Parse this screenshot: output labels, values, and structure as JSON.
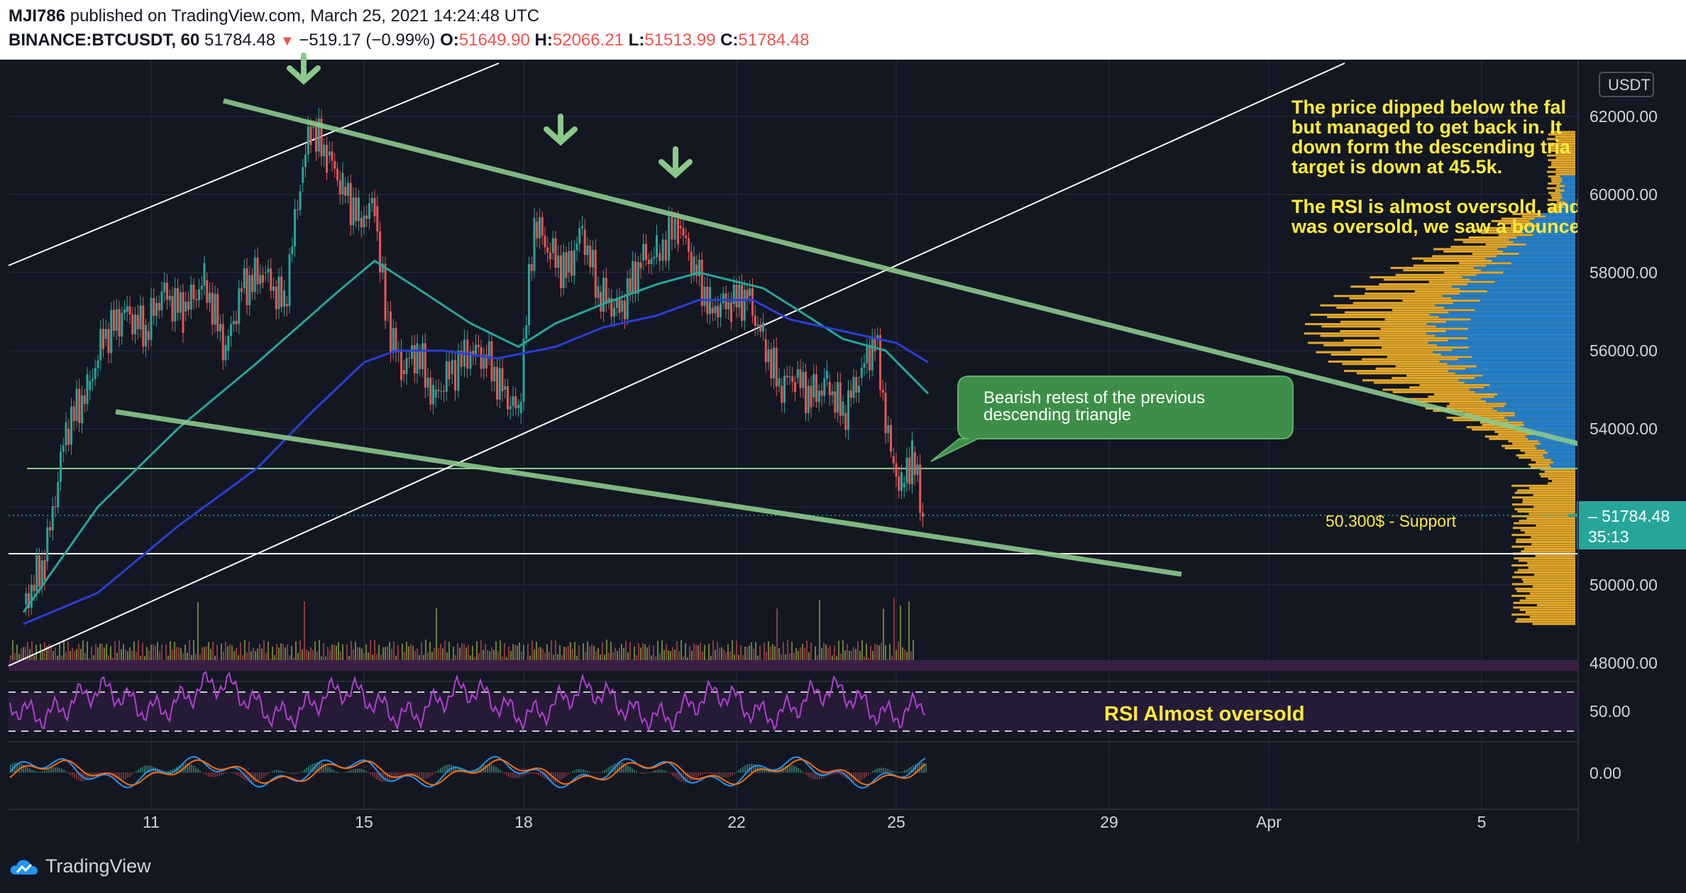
{
  "header": {
    "author": "MJI786",
    "published": "published on TradingView.com, March 25, 2021 14:24:48 UTC",
    "symbol": "BINANCE:BTCUSDT, 60",
    "last": "51784.48",
    "change": "−519.17 (−0.99%)",
    "o_label": "O:",
    "o_value": "51649.90",
    "h_label": "H:",
    "h_value": "52066.21",
    "l_label": "L:",
    "l_value": "51513.99",
    "c_label": "C:",
    "c_value": "51784.48"
  },
  "chart_data": {
    "type": "candlestick",
    "symbol": "BINANCE:BTCUSDT",
    "interval": "60",
    "currency": "USDT",
    "price_axis": {
      "ticks": [
        48000,
        50000,
        52000,
        54000,
        56000,
        58000,
        60000,
        62000
      ],
      "labels": [
        "48000.00",
        "50000.00",
        "52000.00",
        "54000.00",
        "56000.00",
        "58000.00",
        "60000.00",
        "62000.00"
      ]
    },
    "time_axis": {
      "labels": [
        "11",
        "15",
        "18",
        "22",
        "25",
        "29",
        "Apr",
        "5"
      ]
    },
    "price_path": [
      [
        8.6,
        49500
      ],
      [
        9.0,
        50600
      ],
      [
        9.4,
        54000
      ],
      [
        9.8,
        55000
      ],
      [
        10.1,
        56300
      ],
      [
        10.5,
        57000
      ],
      [
        10.9,
        56500
      ],
      [
        11.2,
        57500
      ],
      [
        11.6,
        57000
      ],
      [
        12.0,
        57800
      ],
      [
        12.4,
        56000
      ],
      [
        12.7,
        57600
      ],
      [
        13.1,
        58000
      ],
      [
        13.5,
        57200
      ],
      [
        13.8,
        60300
      ],
      [
        14.0,
        61700
      ],
      [
        14.3,
        61000
      ],
      [
        14.6,
        60200
      ],
      [
        14.9,
        59400
      ],
      [
        15.2,
        59700
      ],
      [
        15.4,
        57000
      ],
      [
        15.7,
        55500
      ],
      [
        16.0,
        56000
      ],
      [
        16.3,
        54800
      ],
      [
        16.6,
        55400
      ],
      [
        17.0,
        56000
      ],
      [
        17.3,
        55800
      ],
      [
        17.6,
        55000
      ],
      [
        17.9,
        54400
      ],
      [
        18.2,
        59300
      ],
      [
        18.5,
        58500
      ],
      [
        18.8,
        58000
      ],
      [
        19.1,
        59100
      ],
      [
        19.4,
        57500
      ],
      [
        19.8,
        57000
      ],
      [
        20.2,
        58300
      ],
      [
        20.5,
        58500
      ],
      [
        20.9,
        59200
      ],
      [
        21.2,
        58200
      ],
      [
        21.5,
        57100
      ],
      [
        21.9,
        57200
      ],
      [
        22.2,
        57400
      ],
      [
        22.5,
        56300
      ],
      [
        22.8,
        55100
      ],
      [
        23.1,
        55300
      ],
      [
        23.4,
        54800
      ],
      [
        23.7,
        55200
      ],
      [
        24.0,
        54400
      ],
      [
        24.3,
        55300
      ],
      [
        24.6,
        56300
      ],
      [
        24.9,
        53300
      ],
      [
        25.1,
        52500
      ],
      [
        25.3,
        53400
      ],
      [
        25.5,
        51784
      ]
    ],
    "ema_teal_path": [
      [
        8.6,
        49300
      ],
      [
        10.0,
        52000
      ],
      [
        11.5,
        54000
      ],
      [
        13.0,
        55700
      ],
      [
        14.5,
        57500
      ],
      [
        15.2,
        58300
      ],
      [
        16.0,
        57600
      ],
      [
        17.0,
        56700
      ],
      [
        17.9,
        56100
      ],
      [
        18.6,
        56700
      ],
      [
        19.5,
        57200
      ],
      [
        20.5,
        57700
      ],
      [
        21.3,
        58000
      ],
      [
        22.5,
        57600
      ],
      [
        23.2,
        57000
      ],
      [
        24.0,
        56300
      ],
      [
        24.8,
        56000
      ],
      [
        25.6,
        54900
      ]
    ],
    "ema_blue_path": [
      [
        8.6,
        49000
      ],
      [
        10.0,
        49800
      ],
      [
        11.5,
        51500
      ],
      [
        13.0,
        53000
      ],
      [
        14.0,
        54400
      ],
      [
        15.0,
        55700
      ],
      [
        15.6,
        56000
      ],
      [
        16.5,
        56000
      ],
      [
        17.5,
        55800
      ],
      [
        18.6,
        56100
      ],
      [
        19.5,
        56600
      ],
      [
        20.5,
        56900
      ],
      [
        21.3,
        57300
      ],
      [
        22.3,
        57300
      ],
      [
        23.0,
        56800
      ],
      [
        24.0,
        56500
      ],
      [
        25.0,
        56200
      ],
      [
        25.6,
        55700
      ]
    ],
    "rsi": {
      "levels": [
        70,
        30
      ],
      "axis_label": "50.00",
      "note": "RSI Almost oversold"
    },
    "macd": {
      "axis_label": "0.00"
    },
    "annotations": {
      "callout": "Bearish retest of the previous descending triangle",
      "support_label": "50.300$ - Support",
      "commentary": [
        "The price dipped below the fal",
        "but managed to get back in. It",
        "down form the descending tria",
        "target is down at 45.5k.",
        "",
        "The RSI is almost oversold, and",
        "was oversold, we saw a bounce"
      ]
    },
    "last_price_tag": {
      "price": "51784.48",
      "countdown": "35:13"
    },
    "colors": {
      "background": "#131722",
      "up": "#26a69a",
      "down": "#ef5350",
      "ema_teal": "#26a69a",
      "ema_blue": "#2a3ed8",
      "trendline": "#8bc98b",
      "note_text": "#ffeb3b",
      "rsi_line": "#b03fd0",
      "macd": "#2196f3",
      "signal": "#ff6d00",
      "volume_profile": "#e5a92a",
      "volume_profile_va": "#1e7fd0",
      "callout": "#3d8f47"
    }
  },
  "footer": {
    "brand": "TradingView"
  }
}
